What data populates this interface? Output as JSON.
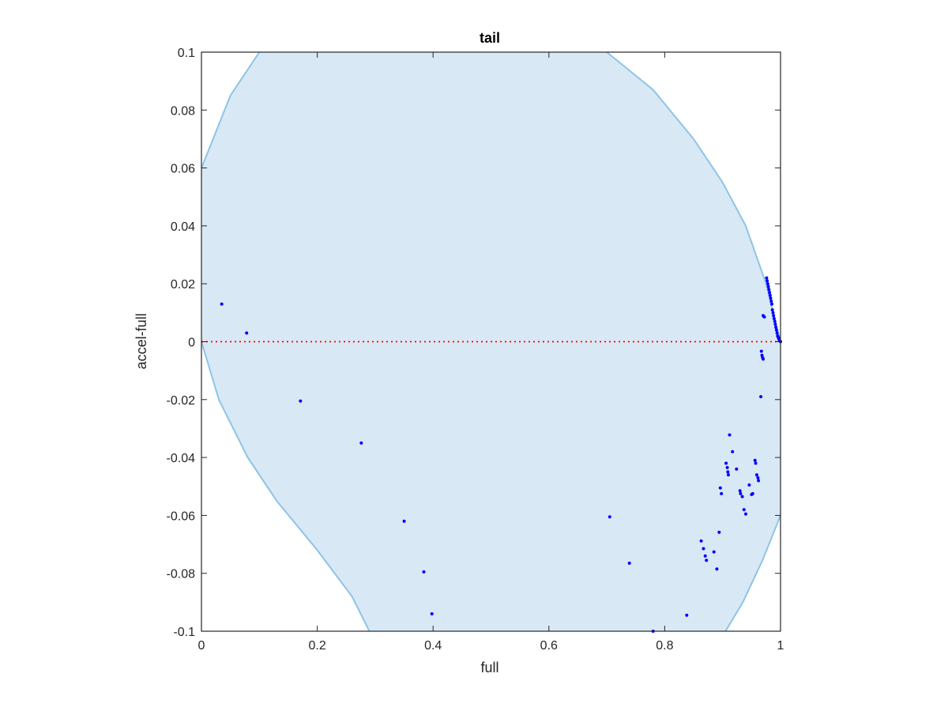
{
  "chart_data": {
    "type": "scatter",
    "title": "tail",
    "xlabel": "full",
    "ylabel": "accel-full",
    "xlim": [
      0,
      1
    ],
    "ylim": [
      -0.1,
      0.1
    ],
    "xticks": [
      "0",
      "0.2",
      "0.4",
      "0.6",
      "0.8",
      "1"
    ],
    "yticks": [
      "-0.1",
      "-0.08",
      "-0.06",
      "-0.04",
      "-0.02",
      "0",
      "0.02",
      "0.04",
      "0.06",
      "0.08",
      "0.1"
    ],
    "grid": false,
    "reference_line": {
      "y": 0,
      "color": "#ff0000",
      "style": "dotted"
    },
    "region": {
      "fill": "#d9e8f5",
      "edge": "#8ec4e6",
      "left_boundary": [
        [
          0.1,
          0.1
        ],
        [
          0.05,
          0.085
        ],
        [
          0.02,
          0.07
        ],
        [
          0.0,
          0.06
        ]
      ],
      "lower_left_boundary": [
        [
          0.0,
          0.0
        ],
        [
          0.03,
          -0.02
        ],
        [
          0.08,
          -0.04
        ],
        [
          0.13,
          -0.055
        ],
        [
          0.2,
          -0.072
        ],
        [
          0.26,
          -0.088
        ],
        [
          0.29,
          -0.1
        ]
      ],
      "right_boundary": [
        [
          0.7,
          0.1
        ],
        [
          0.78,
          0.087
        ],
        [
          0.85,
          0.07
        ],
        [
          0.9,
          0.055
        ],
        [
          0.94,
          0.04
        ],
        [
          0.975,
          0.02
        ],
        [
          1.0,
          0.0
        ]
      ],
      "lower_right_boundary": [
        [
          1.0,
          -0.06
        ],
        [
          0.97,
          -0.075
        ],
        [
          0.935,
          -0.09
        ],
        [
          0.905,
          -0.1
        ]
      ]
    },
    "series": [
      {
        "color": "#0000ff",
        "points": [
          [
            0.035,
            0.013
          ],
          [
            0.078,
            0.003
          ],
          [
            0.171,
            -0.0205
          ],
          [
            0.276,
            -0.035
          ],
          [
            0.35,
            -0.062
          ],
          [
            0.384,
            -0.0795
          ],
          [
            0.398,
            -0.094
          ],
          [
            0.705,
            -0.0605
          ],
          [
            0.739,
            -0.0765
          ],
          [
            0.78,
            -0.1
          ],
          [
            0.838,
            -0.0945
          ],
          [
            0.863,
            -0.0688
          ],
          [
            0.867,
            -0.0715
          ],
          [
            0.87,
            -0.074
          ],
          [
            0.872,
            -0.0755
          ],
          [
            0.885,
            -0.0726
          ],
          [
            0.89,
            -0.0785
          ],
          [
            0.894,
            -0.0658
          ],
          [
            0.896,
            -0.0505
          ],
          [
            0.898,
            -0.0525
          ],
          [
            0.906,
            -0.042
          ],
          [
            0.908,
            -0.0435
          ],
          [
            0.909,
            -0.045
          ],
          [
            0.91,
            -0.046
          ],
          [
            0.912,
            -0.0322
          ],
          [
            0.917,
            -0.038
          ],
          [
            0.924,
            -0.044
          ],
          [
            0.93,
            -0.0515
          ],
          [
            0.931,
            -0.0525
          ],
          [
            0.934,
            -0.0535
          ],
          [
            0.937,
            -0.058
          ],
          [
            0.94,
            -0.0595
          ],
          [
            0.946,
            -0.0495
          ],
          [
            0.95,
            -0.0528
          ],
          [
            0.952,
            -0.0525
          ],
          [
            0.956,
            -0.041
          ],
          [
            0.957,
            -0.042
          ],
          [
            0.959,
            -0.046
          ],
          [
            0.961,
            -0.047
          ],
          [
            0.962,
            -0.048
          ],
          [
            0.966,
            -0.019
          ],
          [
            0.967,
            -0.0033
          ],
          [
            0.968,
            -0.0047
          ],
          [
            0.969,
            -0.0055
          ],
          [
            0.97,
            -0.006
          ],
          [
            0.97,
            0.009
          ],
          [
            0.972,
            0.0085
          ],
          [
            0.976,
            0.022
          ],
          [
            0.977,
            0.021
          ],
          [
            0.978,
            0.02
          ],
          [
            0.979,
            0.019
          ],
          [
            0.98,
            0.018
          ],
          [
            0.981,
            0.017
          ],
          [
            0.982,
            0.016
          ],
          [
            0.983,
            0.015
          ],
          [
            0.984,
            0.014
          ],
          [
            0.985,
            0.013
          ],
          [
            0.986,
            0.011
          ],
          [
            0.987,
            0.01
          ],
          [
            0.988,
            0.009
          ],
          [
            0.989,
            0.008
          ],
          [
            0.99,
            0.007
          ],
          [
            0.991,
            0.006
          ],
          [
            0.992,
            0.005
          ],
          [
            0.993,
            0.004
          ],
          [
            0.994,
            0.003
          ],
          [
            0.995,
            0.002
          ],
          [
            0.996,
            0.0015
          ],
          [
            0.997,
            0.001
          ],
          [
            0.998,
            0.0005
          ],
          [
            0.999,
            0.0002
          ],
          [
            1.0,
            0.0
          ]
        ]
      }
    ]
  }
}
